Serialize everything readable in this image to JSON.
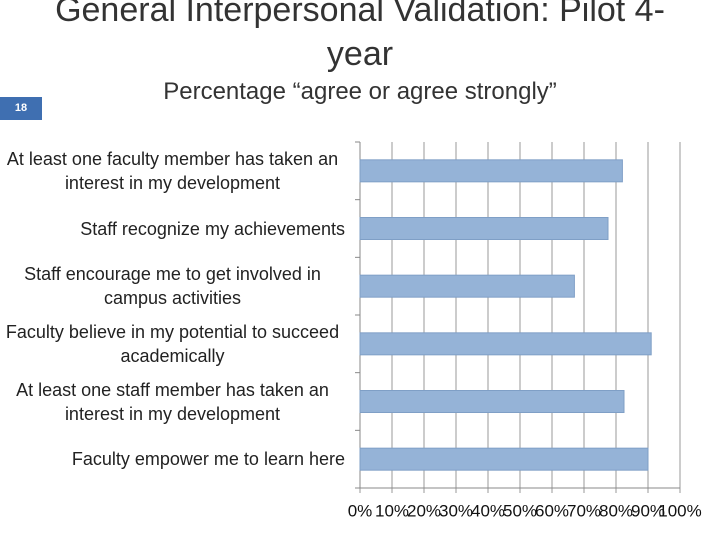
{
  "slide_number": "18",
  "chart_data": {
    "type": "bar",
    "orientation": "horizontal",
    "title": "General Interpersonal Validation: Pilot 4-year",
    "subtitle": "Percentage “agree or agree strongly”",
    "categories": [
      "At least one faculty member has taken an interest in my development",
      "Staff recognize my achievements",
      "Staff encourage me to get involved in campus activities",
      "Faculty believe in my potential to succeed academically",
      "At least one staff member has taken an interest in my development",
      "Faculty empower me to learn here"
    ],
    "values": [
      82,
      77.5,
      67,
      91,
      82.5,
      90
    ],
    "color": "#95b3d7",
    "xlim": [
      0,
      100
    ],
    "xticks": [
      {
        "value": 0,
        "label": "0%"
      },
      {
        "value": 10,
        "label": "10%"
      },
      {
        "value": 20,
        "label": "20%"
      },
      {
        "value": 30,
        "label": "30%"
      },
      {
        "value": 40,
        "label": "40%"
      },
      {
        "value": 50,
        "label": "50%"
      },
      {
        "value": 60,
        "label": "60%"
      },
      {
        "value": 70,
        "label": "70%"
      },
      {
        "value": 80,
        "label": "80%"
      },
      {
        "value": 90,
        "label": "90%"
      },
      {
        "value": 100,
        "label": "100%"
      }
    ],
    "grid": true
  }
}
